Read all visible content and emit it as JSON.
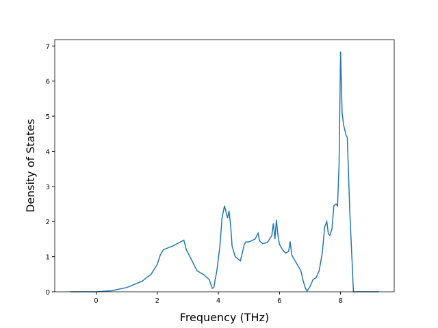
{
  "chart_data": {
    "type": "line",
    "x_label": "Frequency (THz)",
    "y_label": "Density of States",
    "x": [
      -0.85,
      0,
      0.5,
      1,
      1.5,
      1.8,
      2.0,
      2.1,
      2.2,
      2.5,
      2.87,
      2.95,
      3.1,
      3.3,
      3.5,
      3.7,
      3.8,
      3.85,
      3.95,
      4.05,
      4.12,
      4.2,
      4.3,
      4.35,
      4.4,
      4.45,
      4.55,
      4.72,
      4.85,
      4.9,
      5.0,
      5.2,
      5.3,
      5.35,
      5.45,
      5.6,
      5.75,
      5.8,
      5.85,
      5.9,
      5.95,
      6.0,
      6.1,
      6.2,
      6.3,
      6.35,
      6.4,
      6.5,
      6.7,
      6.78,
      6.85,
      6.9,
      7.0,
      7.1,
      7.2,
      7.3,
      7.4,
      7.48,
      7.55,
      7.6,
      7.65,
      7.72,
      7.78,
      7.85,
      7.9,
      7.95,
      8.0,
      8.05,
      8.1,
      8.18,
      8.22,
      8.3,
      8.38,
      8.42,
      9.25
    ],
    "series": [
      {
        "color": "#1f77b4",
        "values": [
          0,
          0,
          0.03,
          0.12,
          0.3,
          0.5,
          0.78,
          1.05,
          1.2,
          1.3,
          1.47,
          1.2,
          0.95,
          0.6,
          0.5,
          0.35,
          0.1,
          0.12,
          0.6,
          1.3,
          2.1,
          2.45,
          2.1,
          2.3,
          1.9,
          1.3,
          1.0,
          0.88,
          1.35,
          1.42,
          1.42,
          1.5,
          1.67,
          1.45,
          1.37,
          1.4,
          1.6,
          1.95,
          1.5,
          2.05,
          1.6,
          1.35,
          1.2,
          1.1,
          1.15,
          1.43,
          1.05,
          0.9,
          0.6,
          0.3,
          0.1,
          0.02,
          0.15,
          0.35,
          0.4,
          0.6,
          1.1,
          1.85,
          2.0,
          1.65,
          1.6,
          1.8,
          2.45,
          2.5,
          2.45,
          3.6,
          6.84,
          5.1,
          4.75,
          4.45,
          4.4,
          2.3,
          0.8,
          0,
          0
        ]
      }
    ],
    "xlim": [
      -1.355,
      9.755
    ],
    "xticks": [
      0,
      2,
      4,
      6,
      8
    ],
    "ylim": [
      0,
      7.18
    ],
    "yticks": [
      0,
      1,
      2,
      3,
      4,
      5,
      6,
      7
    ],
    "grid": false
  }
}
